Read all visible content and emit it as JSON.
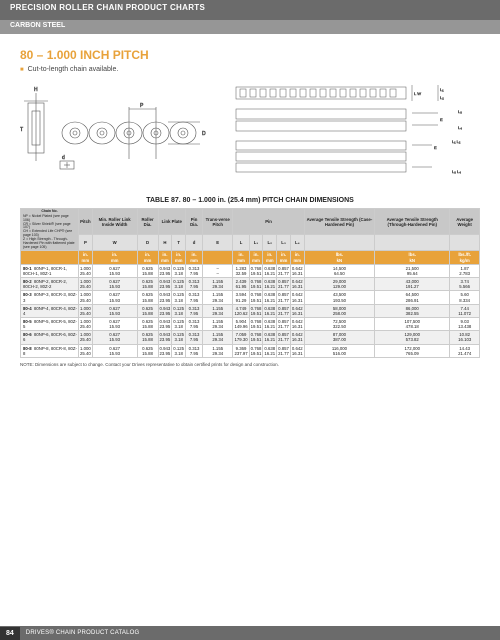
{
  "header": {
    "title": "PRECISION ROLLER CHAIN PRODUCT CHARTS",
    "sub": "CARBON STEEL"
  },
  "section": {
    "title": "80 – 1.000 INCH PITCH",
    "bullet": "Cut-to-length chain available."
  },
  "table": {
    "title": "TABLE 87. 80 – 1.000 in. (25.4 mm) PITCH CHAIN DIMENSIONS",
    "note_hdr": "NP = Nickel Plated (see page 106)\nCR = Silver Shield® (see page 107)\nCH = Extended Life CHP® (see page 103)\nZ = High Strength - Through-Hardened Pin with flattened plate (see page 105)",
    "cols": [
      "Chain No.",
      "Pitch",
      "Min. Roller Link Inside Width",
      "Roller Dia.",
      "Link Plate",
      "",
      "Pin Dia.",
      "Trans-verse Pitch",
      "Pin",
      "",
      "",
      "",
      "Average Tensile Strength (Case-Hardened Pin)",
      "Average Tensile Strength (Through-Hardened Pin)",
      "Average Weight"
    ],
    "sub": [
      "",
      "P",
      "W",
      "D",
      "H",
      "T",
      "d",
      "E",
      "L",
      "L₁",
      "L₂",
      "L₃",
      "L₄",
      "",
      "",
      ""
    ],
    "units_in": [
      "",
      "in.",
      "in.",
      "in.",
      "in.",
      "in.",
      "in.",
      "",
      "in.",
      "in.",
      "in.",
      "in.",
      "in.",
      "lbs.",
      "lbs.",
      "lbs./ft."
    ],
    "units_mm": [
      "",
      "mm",
      "mm",
      "mm",
      "mm",
      "mm",
      "mm",
      "",
      "mm",
      "mm",
      "mm",
      "mm",
      "mm",
      "kN",
      "kN",
      "kg/m"
    ],
    "rows": [
      {
        "id": "80-1",
        "chain": "80NP-1, 80CR-1, 80CH-1, 80Z-1",
        "v_in": [
          "1.000",
          "0.627",
          "0.625",
          "0.943",
          "0.125",
          "0.313",
          "–",
          "1.283",
          "0.768",
          "0.638",
          "0.857",
          "0.642",
          "14,500",
          "21,500",
          "1.87"
        ],
        "v_mm": [
          "25.40",
          "15.93",
          "15.88",
          "23.95",
          "3.18",
          "7.95",
          "–",
          "32.59",
          "19.51",
          "16.21",
          "21.77",
          "16.31",
          "64.50",
          "95.64",
          "2.783"
        ]
      },
      {
        "id": "80-2",
        "chain": "80NP-2, 80CR-2, 80CH-2, 80Z-2",
        "v_in": [
          "1.000",
          "0.627",
          "0.625",
          "0.943",
          "0.125",
          "0.313",
          "1.155",
          "2.439",
          "0.768",
          "0.638",
          "0.857",
          "0.642",
          "29,000",
          "43,000",
          "3.74"
        ],
        "v_mm": [
          "25.40",
          "15.93",
          "15.88",
          "23.95",
          "3.18",
          "7.95",
          "29.34",
          "61.95",
          "19.51",
          "16.21",
          "21.77",
          "16.31",
          "129.00",
          "191.27",
          "5.566"
        ]
      },
      {
        "id": "80-3",
        "chain": "80NP-3, 80CR-3, 80Z-3",
        "v_in": [
          "1.000",
          "0.627",
          "0.625",
          "0.943",
          "0.125",
          "0.313",
          "1.155",
          "3.594",
          "0.768",
          "0.638",
          "0.857",
          "0.642",
          "43,500",
          "64,500",
          "5.60"
        ],
        "v_mm": [
          "25.40",
          "15.93",
          "15.88",
          "23.95",
          "3.18",
          "7.95",
          "29.34",
          "91.29",
          "19.51",
          "16.21",
          "21.77",
          "16.31",
          "193.50",
          "286.91",
          "8.334"
        ]
      },
      {
        "id": "80-4",
        "chain": "80NP-4, 80CR-4, 80Z-4",
        "v_in": [
          "1.000",
          "0.627",
          "0.625",
          "0.943",
          "0.125",
          "0.313",
          "1.155",
          "4.749",
          "0.768",
          "0.638",
          "0.857",
          "0.642",
          "58,000",
          "86,000",
          "7.44"
        ],
        "v_mm": [
          "25.40",
          "15.93",
          "15.88",
          "23.95",
          "3.18",
          "7.95",
          "29.34",
          "120.62",
          "19.51",
          "16.21",
          "21.77",
          "16.31",
          "258.00",
          "382.55",
          "11.072"
        ]
      },
      {
        "id": "80-5",
        "chain": "80NP-5, 80CR-5, 80Z-5",
        "v_in": [
          "1.000",
          "0.627",
          "0.625",
          "0.943",
          "0.125",
          "0.313",
          "1.155",
          "5.904",
          "0.768",
          "0.638",
          "0.857",
          "0.642",
          "72,500",
          "107,500",
          "9.03"
        ],
        "v_mm": [
          "25.40",
          "15.93",
          "15.88",
          "23.95",
          "3.18",
          "7.95",
          "29.34",
          "149.96",
          "19.51",
          "16.21",
          "21.77",
          "16.31",
          "322.50",
          "478.18",
          "13.438"
        ]
      },
      {
        "id": "80-6",
        "chain": "80NP-6, 80CR-6, 80Z-6",
        "v_in": [
          "1.000",
          "0.627",
          "0.625",
          "0.943",
          "0.125",
          "0.313",
          "1.155",
          "7.059",
          "0.768",
          "0.638",
          "0.857",
          "0.642",
          "87,000",
          "129,000",
          "10.82"
        ],
        "v_mm": [
          "25.40",
          "15.93",
          "15.88",
          "23.95",
          "3.18",
          "7.95",
          "29.34",
          "179.30",
          "19.51",
          "16.21",
          "21.77",
          "16.31",
          "387.00",
          "573.82",
          "16.103"
        ]
      },
      {
        "id": "80-8",
        "chain": "80NP-8, 80CR-8, 80Z-8",
        "v_in": [
          "1.000",
          "0.627",
          "0.625",
          "0.943",
          "0.125",
          "0.313",
          "1.155",
          "9.369",
          "0.768",
          "0.638",
          "0.857",
          "0.642",
          "116,000",
          "172,000",
          "14.43"
        ],
        "v_mm": [
          "25.40",
          "15.93",
          "15.88",
          "23.95",
          "3.18",
          "7.95",
          "29.34",
          "237.97",
          "19.51",
          "16.21",
          "21.77",
          "16.31",
          "516.00",
          "765.09",
          "21.474"
        ]
      }
    ]
  },
  "footnote": "NOTE: Dimensions are subject to change. Contact your Drives representative to obtain certified prints for design and construction.",
  "footer": {
    "page": "84",
    "label": "DRIVES® CHAIN PRODUCT CATALOG"
  },
  "colors": {
    "accent": "#e8a23a",
    "header_bg": "#6b6b6b",
    "sub_bg": "#969696"
  }
}
